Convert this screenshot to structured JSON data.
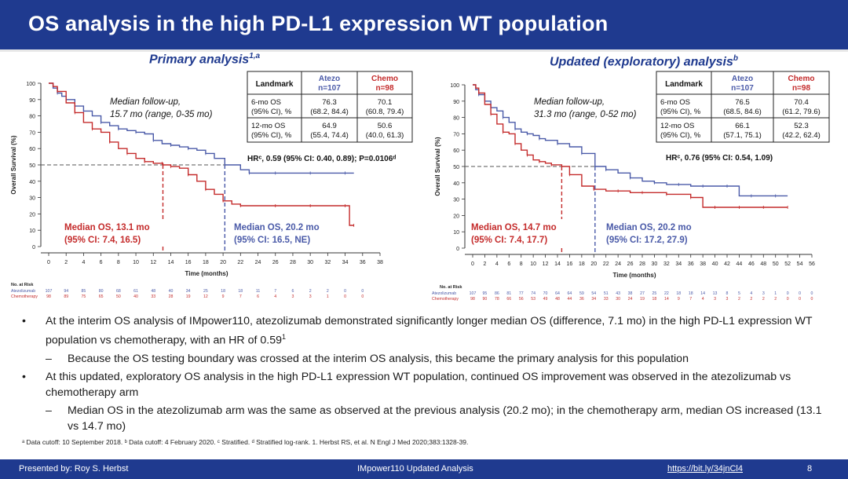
{
  "slide": {
    "title": "OS analysis in the high PD-L1 expression WT population",
    "page_number": "8"
  },
  "panels": [
    {
      "title": "Primary analysis",
      "title_sup": "1,a",
      "ylabel": "Overall Survival (%)",
      "xlabel": "Time (months)",
      "followup": [
        "Median follow-up,",
        "15.7 mo (range, 0-35 mo)"
      ],
      "table": {
        "headers": [
          "Landmark",
          "Atezo",
          "n=107",
          "Chemo",
          "n=98"
        ],
        "rows": [
          [
            "6-mo OS",
            "(95% CI), %",
            "76.3",
            "(68.2, 84.4)",
            "70.1",
            "(60.8, 79.4)"
          ],
          [
            "12-mo OS",
            "(95% CI), %",
            "64.9",
            "(55.4, 74.4)",
            "50.6",
            "(40.0, 61.3)"
          ]
        ]
      },
      "hr_text": "HRᶜ, 0.59 (95% CI: 0.40, 0.89); P=0.0106ᵈ",
      "chemo_median": [
        "Median OS, 13.1 mo",
        "(95% CI: 7.4, 16.5)"
      ],
      "atezo_median": [
        "Median OS, 20.2 mo",
        "(95% CI: 16.5, NE)"
      ],
      "risk_title": "No. at Risk",
      "risk_rows": [
        {
          "label": "Atezolizumab",
          "values": [
            "107",
            "94",
            "85",
            "80",
            "68",
            "61",
            "48",
            "40",
            "34",
            "25",
            "18",
            "18",
            "11",
            "7",
            "6",
            "2",
            "2",
            "0",
            "0"
          ]
        },
        {
          "label": "Chemotherapy",
          "values": [
            "98",
            "89",
            "75",
            "65",
            "50",
            "40",
            "33",
            "28",
            "19",
            "12",
            "9",
            "7",
            "6",
            "4",
            "3",
            "3",
            "1",
            "0",
            "0"
          ]
        }
      ]
    },
    {
      "title": "Updated (exploratory) analysis",
      "title_sup": "b",
      "ylabel": "Overall Survival (%)",
      "xlabel": "Time (months)",
      "followup": [
        "Median follow-up,",
        "31.3 mo (range, 0-52 mo)"
      ],
      "table": {
        "headers": [
          "Landmark",
          "Atezo",
          "n=107",
          "Chemo",
          "n=98"
        ],
        "rows": [
          [
            "6-mo OS",
            "(95% CI), %",
            "76.5",
            "(68.5, 84.6)",
            "70.4",
            "(61.2, 79.6)"
          ],
          [
            "12-mo OS",
            "(95% CI), %",
            "66.1",
            "(57.1, 75.1)",
            "52.3",
            "(42.2, 62.4)"
          ]
        ]
      },
      "hr_text": "HRᶜ, 0.76 (95% CI: 0.54, 1.09)",
      "chemo_median": [
        "Median OS, 14.7 mo",
        "(95% CI: 7.4, 17.7)"
      ],
      "atezo_median": [
        "Median OS, 20.2 mo",
        "(95% CI: 17.2, 27.9)"
      ],
      "risk_title": "No. at Risk",
      "risk_rows": [
        {
          "label": "Atezolizumab",
          "values": [
            "107",
            "95",
            "86",
            "81",
            "77",
            "74",
            "70",
            "64",
            "64",
            "59",
            "54",
            "51",
            "43",
            "38",
            "27",
            "25",
            "22",
            "18",
            "18",
            "14",
            "13",
            "8",
            "5",
            "4",
            "3",
            "1",
            "0",
            "0",
            "0"
          ]
        },
        {
          "label": "Chemotherapy",
          "values": [
            "98",
            "90",
            "78",
            "66",
            "56",
            "53",
            "49",
            "48",
            "44",
            "36",
            "34",
            "33",
            "30",
            "24",
            "19",
            "18",
            "14",
            "9",
            "7",
            "4",
            "3",
            "3",
            "2",
            "2",
            "2",
            "2",
            "0",
            "0",
            "0"
          ]
        }
      ]
    }
  ],
  "chart_data": [
    {
      "type": "line",
      "title": "Primary analysis",
      "xlabel": "Time (months)",
      "ylabel": "Overall Survival (%)",
      "xlim": [
        0,
        38
      ],
      "ylim": [
        0,
        100
      ],
      "xticks": [
        "0",
        "2",
        "4",
        "6",
        "8",
        "10",
        "12",
        "14",
        "16",
        "18",
        "20",
        "22",
        "24",
        "26",
        "28",
        "30",
        "32",
        "34",
        "36",
        "38"
      ],
      "yticks": [
        "0",
        "10",
        "20",
        "30",
        "40",
        "50",
        "60",
        "70",
        "80",
        "90",
        "100"
      ],
      "reference_y": 50,
      "series": [
        {
          "name": "Atezolizumab",
          "color": "#4a5aa8",
          "x": [
            0,
            0.5,
            1,
            1.5,
            2,
            3,
            4,
            5,
            6,
            7,
            8,
            9,
            10,
            11,
            12,
            13,
            14,
            15,
            16,
            17,
            18,
            19,
            20.2,
            22,
            23,
            24,
            26,
            28,
            30,
            32,
            34,
            35
          ],
          "y": [
            100,
            97,
            94,
            92,
            90,
            86,
            83,
            80,
            76,
            74,
            72,
            71,
            70,
            69,
            65,
            63,
            62,
            61,
            60,
            59,
            57,
            54,
            50,
            47,
            45,
            45,
            45,
            45,
            45,
            45,
            45,
            45
          ]
        },
        {
          "name": "Chemotherapy",
          "color": "#c42b2b",
          "x": [
            0,
            0.5,
            1,
            2,
            3,
            4,
            5,
            6,
            7,
            8,
            9,
            10,
            11,
            12,
            13,
            13.1,
            14,
            15,
            16,
            17,
            18,
            19,
            20,
            21,
            22,
            24,
            26,
            28,
            30,
            32,
            34,
            34.5,
            35
          ],
          "y": [
            100,
            98,
            95,
            88,
            82,
            76,
            72,
            70,
            64,
            60,
            57,
            54,
            52,
            51,
            51,
            50,
            49,
            48,
            44,
            40,
            35,
            32,
            28,
            26,
            25,
            25,
            25,
            25,
            25,
            25,
            25,
            13,
            13
          ]
        }
      ],
      "medians": [
        {
          "series": "Chemotherapy",
          "x": 13.1
        },
        {
          "series": "Atezolizumab",
          "x": 20.2
        }
      ]
    },
    {
      "type": "line",
      "title": "Updated (exploratory) analysis",
      "xlabel": "Time (months)",
      "ylabel": "Overall Survival (%)",
      "xlim": [
        0,
        56
      ],
      "ylim": [
        0,
        100
      ],
      "xticks": [
        "0",
        "2",
        "4",
        "6",
        "8",
        "10",
        "12",
        "14",
        "16",
        "18",
        "20",
        "22",
        "24",
        "26",
        "28",
        "30",
        "32",
        "34",
        "36",
        "38",
        "40",
        "42",
        "44",
        "46",
        "48",
        "50",
        "52",
        "54",
        "56"
      ],
      "yticks": [
        "0",
        "10",
        "20",
        "30",
        "40",
        "50",
        "60",
        "70",
        "80",
        "90",
        "100"
      ],
      "reference_y": 50,
      "series": [
        {
          "name": "Atezolizumab",
          "color": "#4a5aa8",
          "x": [
            0,
            0.5,
            1,
            2,
            3,
            4,
            5,
            6,
            7,
            8,
            9,
            10,
            11,
            12,
            14,
            16,
            18,
            20.2,
            22,
            24,
            26,
            28,
            30,
            32,
            34,
            36,
            38,
            40,
            42,
            44,
            46,
            48,
            50,
            52
          ],
          "y": [
            100,
            97,
            94,
            90,
            86,
            84,
            80,
            77,
            73,
            71,
            70,
            69,
            67,
            66,
            64,
            62,
            58,
            50,
            48,
            46,
            43,
            41,
            40,
            39,
            39,
            38,
            38,
            38,
            38,
            32,
            32,
            32,
            32,
            32
          ]
        },
        {
          "name": "Chemotherapy",
          "color": "#c42b2b",
          "x": [
            0,
            0.5,
            1,
            2,
            3,
            4,
            5,
            6,
            7,
            8,
            9,
            10,
            11,
            12,
            13,
            14.7,
            16,
            18,
            20,
            22,
            24,
            26,
            28,
            30,
            32,
            34,
            36,
            38,
            40,
            42,
            44,
            46,
            48,
            50,
            52
          ],
          "y": [
            100,
            98,
            95,
            88,
            82,
            76,
            71,
            70,
            64,
            60,
            57,
            54,
            53,
            52,
            51,
            50,
            45,
            38,
            36,
            35,
            35,
            34,
            34,
            34,
            33,
            33,
            31,
            25,
            25,
            25,
            25,
            25,
            25,
            25,
            25
          ]
        }
      ],
      "medians": [
        {
          "series": "Chemotherapy",
          "x": 14.7
        },
        {
          "series": "Atezolizumab",
          "x": 20.2
        }
      ]
    }
  ],
  "bullets": [
    {
      "level": 1,
      "marker": "•",
      "text": "At the interim OS analysis of IMpower110, atezolizumab demonstrated significantly longer median OS (difference, 7.1 mo) in the high PD-L1 expression WT population vs chemotherapy, with an HR of 0.59",
      "sup": "1"
    },
    {
      "level": 2,
      "marker": "–",
      "text": "Because the OS testing boundary was crossed at the interim OS analysis, this became the primary analysis for this population",
      "sup": ""
    },
    {
      "level": 1,
      "marker": "•",
      "text": "At this updated, exploratory OS analysis in the high PD-L1 expression WT population, continued OS improvement was observed in the atezolizumab vs chemotherapy arm",
      "sup": ""
    },
    {
      "level": 2,
      "marker": "–",
      "text": "Median OS in the atezolizumab arm was the same as observed at the previous analysis (20.2 mo); in the chemotherapy arm, median OS increased (13.1 vs 14.7 mo)",
      "sup": ""
    }
  ],
  "footnote": "ᵃ Data cutoff: 10 September 2018. ᵇ Data cutoff: 4 February 2020. ᶜ Stratified. ᵈ Stratified log-rank. 1. Herbst RS, et al. N Engl J Med 2020;383:1328-39.",
  "footer": {
    "presenter": "Presented by: Roy S. Herbst",
    "center": "IMpower110 Updated Analysis",
    "link": "https://bit.ly/34jnCl4"
  },
  "colors": {
    "navy": "#1f3a8f",
    "atezo": "#4a5aa8",
    "chemo": "#c42b2b"
  }
}
